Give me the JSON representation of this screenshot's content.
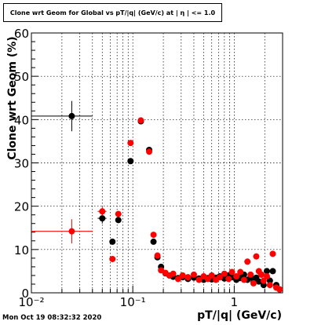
{
  "title": "Clone wrt Geom for Global vs pT/|q| (GeV/c) at | η | <= 1.0",
  "timestamp": "Mon Oct 19 08:32:32 2020",
  "colors": {
    "series_black": "#000000",
    "series_red": "#ff0000",
    "grid": "#000000",
    "background": "#ffffff"
  },
  "chart_data": {
    "type": "scatter",
    "title": "Clone wrt Geom for Global vs pT/|q| (GeV/c) at | η | <= 1.0",
    "xlabel": "pT/|q| (GeV/c)",
    "ylabel": "Clone wrt Geom (%)",
    "xscale": "log",
    "xlim": [
      0.01,
      3.0
    ],
    "ylim": [
      0,
      60
    ],
    "grid": true,
    "x_tick_labels": [
      "10⁻²",
      "10⁻¹",
      "1"
    ],
    "y_tick_labels": [
      "0",
      "10",
      "20",
      "30",
      "40",
      "50",
      "60"
    ],
    "series": [
      {
        "color": "#000000",
        "points": [
          {
            "x": 0.025,
            "y": 40.8,
            "xerr": [
              0.01,
              0.04
            ],
            "yerr": 3.5
          },
          {
            "x": 0.05,
            "y": 17.2,
            "xerr": [
              0.045,
              0.055
            ],
            "yerr": 1.2
          },
          {
            "x": 0.063,
            "y": 11.8
          },
          {
            "x": 0.072,
            "y": 16.8
          },
          {
            "x": 0.095,
            "y": 30.4
          },
          {
            "x": 0.12,
            "y": 39.6
          },
          {
            "x": 0.145,
            "y": 33.0
          },
          {
            "x": 0.16,
            "y": 11.8
          },
          {
            "x": 0.175,
            "y": 8.2
          },
          {
            "x": 0.19,
            "y": 6.0
          },
          {
            "x": 0.21,
            "y": 4.5
          },
          {
            "x": 0.23,
            "y": 4.0
          },
          {
            "x": 0.25,
            "y": 3.7
          },
          {
            "x": 0.28,
            "y": 3.4
          },
          {
            "x": 0.31,
            "y": 3.6
          },
          {
            "x": 0.35,
            "y": 3.2
          },
          {
            "x": 0.4,
            "y": 3.5
          },
          {
            "x": 0.45,
            "y": 3.3
          },
          {
            "x": 0.5,
            "y": 3.0
          },
          {
            "x": 0.55,
            "y": 3.4
          },
          {
            "x": 0.6,
            "y": 3.1
          },
          {
            "x": 0.66,
            "y": 3.5
          },
          {
            "x": 0.72,
            "y": 3.8
          },
          {
            "x": 0.8,
            "y": 3.3
          },
          {
            "x": 0.88,
            "y": 4.0
          },
          {
            "x": 0.95,
            "y": 3.6
          },
          {
            "x": 1.05,
            "y": 3.0
          },
          {
            "x": 1.15,
            "y": 3.4
          },
          {
            "x": 1.25,
            "y": 4.2
          },
          {
            "x": 1.35,
            "y": 3.0
          },
          {
            "x": 1.45,
            "y": 3.6
          },
          {
            "x": 1.55,
            "y": 2.5
          },
          {
            "x": 1.65,
            "y": 3.5
          },
          {
            "x": 1.75,
            "y": 2.6
          },
          {
            "x": 1.85,
            "y": 4.2
          },
          {
            "x": 1.95,
            "y": 1.8
          },
          {
            "x": 2.1,
            "y": 5.0
          },
          {
            "x": 2.25,
            "y": 2.8
          },
          {
            "x": 2.4,
            "y": 5.0
          },
          {
            "x": 2.6,
            "y": 1.8
          },
          {
            "x": 2.8,
            "y": 0.8
          }
        ]
      },
      {
        "color": "#ff0000",
        "points": [
          {
            "x": 0.025,
            "y": 14.2,
            "xerr": [
              0.01,
              0.04
            ],
            "yerr": 2.8
          },
          {
            "x": 0.05,
            "y": 18.8,
            "xerr": [
              0.045,
              0.055
            ],
            "yerr": 1.0
          },
          {
            "x": 0.063,
            "y": 7.8
          },
          {
            "x": 0.072,
            "y": 18.2
          },
          {
            "x": 0.095,
            "y": 34.6
          },
          {
            "x": 0.12,
            "y": 39.8
          },
          {
            "x": 0.145,
            "y": 32.6
          },
          {
            "x": 0.16,
            "y": 13.4
          },
          {
            "x": 0.175,
            "y": 8.6
          },
          {
            "x": 0.19,
            "y": 5.2
          },
          {
            "x": 0.21,
            "y": 4.6
          },
          {
            "x": 0.23,
            "y": 4.0
          },
          {
            "x": 0.25,
            "y": 4.4
          },
          {
            "x": 0.28,
            "y": 3.2
          },
          {
            "x": 0.31,
            "y": 4.0
          },
          {
            "x": 0.35,
            "y": 3.6
          },
          {
            "x": 0.4,
            "y": 4.2
          },
          {
            "x": 0.45,
            "y": 3.0
          },
          {
            "x": 0.5,
            "y": 3.8
          },
          {
            "x": 0.55,
            "y": 3.2
          },
          {
            "x": 0.6,
            "y": 4.0
          },
          {
            "x": 0.66,
            "y": 3.0
          },
          {
            "x": 0.72,
            "y": 3.6
          },
          {
            "x": 0.8,
            "y": 4.4
          },
          {
            "x": 0.88,
            "y": 3.2
          },
          {
            "x": 0.95,
            "y": 4.8
          },
          {
            "x": 1.05,
            "y": 3.8
          },
          {
            "x": 1.15,
            "y": 4.8
          },
          {
            "x": 1.25,
            "y": 3.0
          },
          {
            "x": 1.35,
            "y": 7.2
          },
          {
            "x": 1.45,
            "y": 4.2
          },
          {
            "x": 1.55,
            "y": 2.2
          },
          {
            "x": 1.65,
            "y": 8.4
          },
          {
            "x": 1.75,
            "y": 5.0
          },
          {
            "x": 1.85,
            "y": 4.2
          },
          {
            "x": 1.95,
            "y": 2.8
          },
          {
            "x": 2.1,
            "y": 3.8
          },
          {
            "x": 2.25,
            "y": 1.8
          },
          {
            "x": 2.4,
            "y": 9.0
          },
          {
            "x": 2.6,
            "y": 1.2
          },
          {
            "x": 2.8,
            "y": 0.8
          }
        ]
      }
    ]
  }
}
